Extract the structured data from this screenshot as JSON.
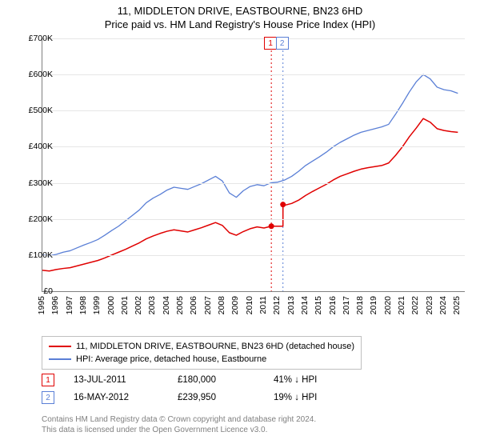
{
  "title_line1": "11, MIDDLETON DRIVE, EASTBOURNE, BN23 6HD",
  "title_line2": "Price paid vs. HM Land Registry's House Price Index (HPI)",
  "chart": {
    "type": "line",
    "x_min": 1995,
    "x_max": 2025.5,
    "y_min": 0,
    "y_max": 700000,
    "y_ticks": [
      0,
      100000,
      200000,
      300000,
      400000,
      500000,
      600000,
      700000
    ],
    "y_tick_labels": [
      "£0",
      "£100K",
      "£200K",
      "£300K",
      "£400K",
      "£500K",
      "£600K",
      "£700K"
    ],
    "x_ticks": [
      1995,
      1996,
      1997,
      1998,
      1999,
      2000,
      2001,
      2002,
      2003,
      2004,
      2005,
      2006,
      2007,
      2008,
      2009,
      2010,
      2011,
      2012,
      2013,
      2014,
      2015,
      2016,
      2017,
      2018,
      2019,
      2020,
      2021,
      2022,
      2023,
      2024,
      2025
    ],
    "background_color": "#ffffff",
    "grid_color": "#e6e6e6",
    "axis_color": "#808080",
    "series": [
      {
        "name": "hpi",
        "label": "HPI: Average price, detached house, Eastbourne",
        "color": "#5a7fd6",
        "width": 1.3,
        "data": [
          [
            1995,
            100000
          ],
          [
            1995.5,
            98000
          ],
          [
            1996,
            102000
          ],
          [
            1996.5,
            108000
          ],
          [
            1997,
            112000
          ],
          [
            1997.5,
            120000
          ],
          [
            1998,
            128000
          ],
          [
            1998.5,
            135000
          ],
          [
            1999,
            143000
          ],
          [
            1999.5,
            155000
          ],
          [
            2000,
            168000
          ],
          [
            2000.5,
            180000
          ],
          [
            2001,
            195000
          ],
          [
            2001.5,
            210000
          ],
          [
            2002,
            225000
          ],
          [
            2002.5,
            245000
          ],
          [
            2003,
            258000
          ],
          [
            2003.5,
            268000
          ],
          [
            2004,
            280000
          ],
          [
            2004.5,
            288000
          ],
          [
            2005,
            285000
          ],
          [
            2005.5,
            282000
          ],
          [
            2006,
            290000
          ],
          [
            2006.5,
            298000
          ],
          [
            2007,
            308000
          ],
          [
            2007.5,
            318000
          ],
          [
            2008,
            305000
          ],
          [
            2008.5,
            272000
          ],
          [
            2009,
            260000
          ],
          [
            2009.5,
            278000
          ],
          [
            2010,
            290000
          ],
          [
            2010.5,
            295000
          ],
          [
            2011,
            292000
          ],
          [
            2011.5,
            300000
          ],
          [
            2012,
            302000
          ],
          [
            2012.5,
            308000
          ],
          [
            2013,
            318000
          ],
          [
            2013.5,
            332000
          ],
          [
            2014,
            348000
          ],
          [
            2014.5,
            360000
          ],
          [
            2015,
            372000
          ],
          [
            2015.5,
            385000
          ],
          [
            2016,
            400000
          ],
          [
            2016.5,
            412000
          ],
          [
            2017,
            422000
          ],
          [
            2017.5,
            432000
          ],
          [
            2018,
            440000
          ],
          [
            2018.5,
            445000
          ],
          [
            2019,
            450000
          ],
          [
            2019.5,
            455000
          ],
          [
            2020,
            462000
          ],
          [
            2020.5,
            490000
          ],
          [
            2021,
            520000
          ],
          [
            2021.5,
            552000
          ],
          [
            2022,
            580000
          ],
          [
            2022.5,
            600000
          ],
          [
            2023,
            588000
          ],
          [
            2023.5,
            565000
          ],
          [
            2024,
            558000
          ],
          [
            2024.5,
            555000
          ],
          [
            2025,
            548000
          ]
        ]
      },
      {
        "name": "price_paid",
        "label": "11, MIDDLETON DRIVE, EASTBOURNE, BN23 6HD (detached house)",
        "color": "#e00000",
        "width": 1.5,
        "data": [
          [
            1995,
            58000
          ],
          [
            1995.5,
            56000
          ],
          [
            1996,
            60000
          ],
          [
            1996.5,
            63000
          ],
          [
            1997,
            65000
          ],
          [
            1997.5,
            70000
          ],
          [
            1998,
            75000
          ],
          [
            1998.5,
            80000
          ],
          [
            1999,
            85000
          ],
          [
            1999.5,
            92000
          ],
          [
            2000,
            100000
          ],
          [
            2000.5,
            108000
          ],
          [
            2001,
            116000
          ],
          [
            2001.5,
            125000
          ],
          [
            2002,
            134000
          ],
          [
            2002.5,
            145000
          ],
          [
            2003,
            153000
          ],
          [
            2003.5,
            160000
          ],
          [
            2004,
            166000
          ],
          [
            2004.5,
            170000
          ],
          [
            2005,
            167000
          ],
          [
            2005.5,
            164000
          ],
          [
            2006,
            170000
          ],
          [
            2006.5,
            176000
          ],
          [
            2007,
            183000
          ],
          [
            2007.5,
            190000
          ],
          [
            2008,
            182000
          ],
          [
            2008.5,
            162000
          ],
          [
            2009,
            155000
          ],
          [
            2009.5,
            165000
          ],
          [
            2010,
            173000
          ],
          [
            2010.5,
            178000
          ],
          [
            2011,
            175000
          ],
          [
            2011.53,
            180000
          ],
          [
            2012,
            180000
          ],
          [
            2012.37,
            180000
          ],
          [
            2012.371,
            239950
          ],
          [
            2012.5,
            238000
          ],
          [
            2013,
            243000
          ],
          [
            2013.5,
            252000
          ],
          [
            2014,
            265000
          ],
          [
            2014.5,
            276000
          ],
          [
            2015,
            286000
          ],
          [
            2015.5,
            296000
          ],
          [
            2016,
            308000
          ],
          [
            2016.5,
            318000
          ],
          [
            2017,
            325000
          ],
          [
            2017.5,
            332000
          ],
          [
            2018,
            338000
          ],
          [
            2018.5,
            342000
          ],
          [
            2019,
            345000
          ],
          [
            2019.5,
            348000
          ],
          [
            2020,
            355000
          ],
          [
            2020.5,
            376000
          ],
          [
            2021,
            400000
          ],
          [
            2021.5,
            428000
          ],
          [
            2022,
            452000
          ],
          [
            2022.5,
            478000
          ],
          [
            2023,
            468000
          ],
          [
            2023.5,
            450000
          ],
          [
            2024,
            445000
          ],
          [
            2024.5,
            442000
          ],
          [
            2025,
            440000
          ]
        ]
      }
    ],
    "sale_markers": [
      {
        "n": "1",
        "x": 2011.53,
        "y": 180000,
        "color": "#e00000",
        "line_style": "dotted"
      },
      {
        "n": "2",
        "x": 2012.37,
        "y": 239950,
        "color": "#5a7fd6",
        "line_style": "dotted"
      }
    ]
  },
  "legend": {
    "border_color": "#c0c0c0"
  },
  "transactions": [
    {
      "n": "1",
      "color": "#e00000",
      "date": "13-JUL-2011",
      "price": "£180,000",
      "delta": "41% ↓ HPI"
    },
    {
      "n": "2",
      "color": "#5a7fd6",
      "date": "16-MAY-2012",
      "price": "£239,950",
      "delta": "19% ↓ HPI"
    }
  ],
  "licence_line1": "Contains HM Land Registry data © Crown copyright and database right 2024.",
  "licence_line2": "This data is licensed under the Open Government Licence v3.0."
}
